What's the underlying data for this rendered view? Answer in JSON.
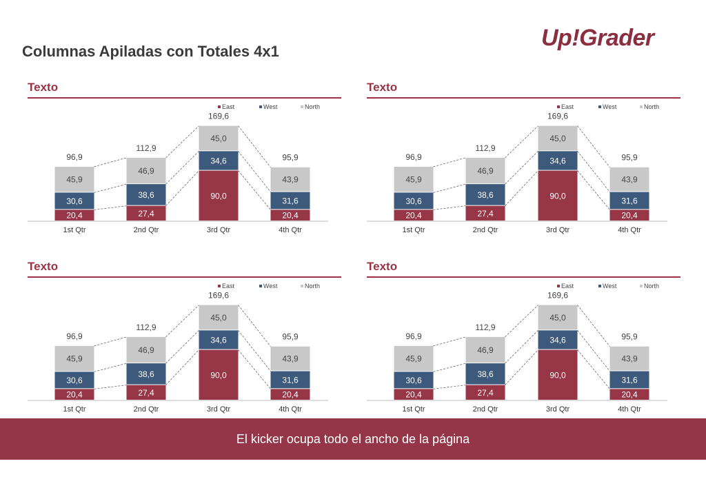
{
  "page": {
    "title": "Columnas Apiladas con Totales 4x1",
    "logo_text": "Up!Grader",
    "kicker": "El kicker ocupa todo el ancho de la página"
  },
  "colors": {
    "east": "#963647",
    "west": "#3d5a7c",
    "north": "#c8c8c8",
    "accent": "#9a3344"
  },
  "panels": [
    {
      "title": "Texto"
    },
    {
      "title": "Texto"
    },
    {
      "title": "Texto"
    },
    {
      "title": "Texto"
    }
  ],
  "chart_data": [
    {
      "type": "bar",
      "stacked": true,
      "categories": [
        "1st Qtr",
        "2nd Qtr",
        "3rd Qtr",
        "4th Qtr"
      ],
      "series": [
        {
          "name": "East",
          "values": [
            "20,4",
            "27,4",
            "90,0",
            "20,4"
          ]
        },
        {
          "name": "West",
          "values": [
            "30,6",
            "38,6",
            "34,6",
            "31,6"
          ]
        },
        {
          "name": "North",
          "values": [
            "45,9",
            "46,9",
            "45,0",
            "43,9"
          ]
        }
      ],
      "totals": [
        "96,9",
        "112,9",
        "169,6",
        "95,9"
      ],
      "legend": "top-right",
      "grid": false
    },
    {
      "type": "bar",
      "stacked": true,
      "categories": [
        "1st Qtr",
        "2nd Qtr",
        "3rd Qtr",
        "4th Qtr"
      ],
      "series": [
        {
          "name": "East",
          "values": [
            "20,4",
            "27,4",
            "90,0",
            "20,4"
          ]
        },
        {
          "name": "West",
          "values": [
            "30,6",
            "38,6",
            "34,6",
            "31,6"
          ]
        },
        {
          "name": "North",
          "values": [
            "45,9",
            "46,9",
            "45,0",
            "43,9"
          ]
        }
      ],
      "totals": [
        "96,9",
        "112,9",
        "169,6",
        "95,9"
      ],
      "legend": "top-right",
      "grid": false
    },
    {
      "type": "bar",
      "stacked": true,
      "categories": [
        "1st Qtr",
        "2nd Qtr",
        "3rd Qtr",
        "4th Qtr"
      ],
      "series": [
        {
          "name": "East",
          "values": [
            "20,4",
            "27,4",
            "90,0",
            "20,4"
          ]
        },
        {
          "name": "West",
          "values": [
            "30,6",
            "38,6",
            "34,6",
            "31,6"
          ]
        },
        {
          "name": "North",
          "values": [
            "45,9",
            "46,9",
            "45,0",
            "43,9"
          ]
        }
      ],
      "totals": [
        "96,9",
        "112,9",
        "169,6",
        "95,9"
      ],
      "legend": "top-right",
      "grid": false
    },
    {
      "type": "bar",
      "stacked": true,
      "categories": [
        "1st Qtr",
        "2nd Qtr",
        "3rd Qtr",
        "4th Qtr"
      ],
      "series": [
        {
          "name": "East",
          "values": [
            "20,4",
            "27,4",
            "90,0",
            "20,4"
          ]
        },
        {
          "name": "West",
          "values": [
            "30,6",
            "38,6",
            "34,6",
            "31,6"
          ]
        },
        {
          "name": "North",
          "values": [
            "45,9",
            "46,9",
            "45,0",
            "43,9"
          ]
        }
      ],
      "totals": [
        "96,9",
        "112,9",
        "169,6",
        "95,9"
      ],
      "legend": "top-right",
      "grid": false
    }
  ]
}
